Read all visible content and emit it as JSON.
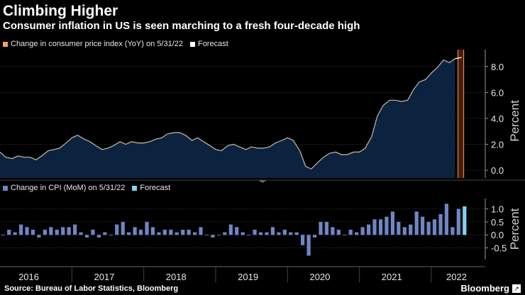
{
  "title": "Climbing Higher",
  "subtitle": "Consumer inflation in US is seen marching to a fresh four-decade high",
  "source": "Source: Bureau of Labor Statistics, Bloomberg",
  "brand": "Bloomberg",
  "brand_icon": "arrow-icon",
  "colors": {
    "bg": "#000000",
    "area_fill": "#0c2340",
    "area_line": "#c9b9a8",
    "highlight": "#f0a35e",
    "forecast_band": "#5a1e10",
    "bar": "#6f86c4",
    "bar_forecast": "#7fd3f0"
  },
  "chart_data": [
    {
      "type": "area",
      "legend": [
        {
          "label": "Change in consumer price index (YoY) on 5/31/22",
          "color": "#f0a35e"
        },
        {
          "label": "Forecast",
          "color": "#ffffff"
        }
      ],
      "ylabel": "Percent",
      "ylim": [
        -0.6,
        9.3
      ],
      "yticks": [
        0,
        2,
        4,
        6,
        8
      ],
      "ytick_labels": [
        "0.0",
        "2.0",
        "4.0",
        "6.0",
        "8.0"
      ],
      "x_start": 2016.0,
      "x_end": 2022.75,
      "series": [
        {
          "name": "CPI YoY",
          "x": [
            2016.0,
            2016.08,
            2016.17,
            2016.25,
            2016.33,
            2016.42,
            2016.5,
            2016.58,
            2016.67,
            2016.75,
            2016.83,
            2016.92,
            2017.0,
            2017.08,
            2017.17,
            2017.25,
            2017.33,
            2017.42,
            2017.5,
            2017.58,
            2017.67,
            2017.75,
            2017.83,
            2017.92,
            2018.0,
            2018.08,
            2018.17,
            2018.25,
            2018.33,
            2018.42,
            2018.5,
            2018.58,
            2018.67,
            2018.75,
            2018.83,
            2018.92,
            2019.0,
            2019.08,
            2019.17,
            2019.25,
            2019.33,
            2019.42,
            2019.5,
            2019.58,
            2019.67,
            2019.75,
            2019.83,
            2019.92,
            2020.0,
            2020.08,
            2020.17,
            2020.25,
            2020.33,
            2020.42,
            2020.5,
            2020.58,
            2020.67,
            2020.75,
            2020.83,
            2020.92,
            2021.0,
            2021.08,
            2021.17,
            2021.25,
            2021.33,
            2021.42,
            2021.5,
            2021.58,
            2021.67,
            2021.75,
            2021.83,
            2021.92,
            2022.0,
            2022.08,
            2022.17,
            2022.25,
            2022.33
          ],
          "values": [
            1.4,
            1.0,
            0.9,
            1.1,
            1.0,
            1.0,
            0.8,
            1.1,
            1.5,
            1.6,
            1.7,
            2.1,
            2.5,
            2.7,
            2.4,
            2.2,
            1.9,
            1.6,
            1.7,
            1.9,
            2.2,
            2.0,
            2.2,
            2.1,
            2.1,
            2.2,
            2.4,
            2.5,
            2.8,
            2.9,
            2.9,
            2.7,
            2.3,
            2.5,
            2.2,
            1.9,
            1.6,
            1.5,
            1.9,
            2.0,
            1.8,
            1.6,
            1.8,
            1.7,
            1.7,
            1.8,
            2.1,
            2.3,
            2.5,
            2.3,
            1.5,
            0.3,
            0.1,
            0.6,
            1.0,
            1.3,
            1.4,
            1.2,
            1.2,
            1.4,
            1.4,
            1.7,
            2.6,
            4.2,
            5.0,
            5.4,
            5.4,
            5.3,
            5.4,
            6.2,
            6.8,
            7.0,
            7.5,
            7.9,
            8.5,
            8.3,
            8.6
          ],
          "forecast_x": [
            2022.33,
            2022.42
          ],
          "forecast_values": [
            8.6,
            8.7
          ]
        }
      ],
      "forecast_band": [
        2022.37,
        2022.45
      ]
    },
    {
      "type": "bar",
      "legend": [
        {
          "label": "Change in CPI (MoM) on 5/31/22",
          "color": "#6f86c4"
        },
        {
          "label": "Forecast",
          "color": "#7fd3f0"
        }
      ],
      "ylabel": "Percent",
      "ylim": [
        -0.95,
        1.4
      ],
      "yticks": [
        -0.5,
        0,
        0.5,
        1.0
      ],
      "ytick_labels": [
        "-0.5",
        "0.0",
        "0.5",
        "1.0"
      ],
      "values": [
        0.0,
        0.2,
        0.1,
        0.4,
        0.3,
        0.2,
        -0.1,
        0.2,
        0.3,
        0.2,
        0.3,
        0.3,
        0.4,
        0.1,
        -0.1,
        0.2,
        -0.1,
        0.1,
        0.0,
        0.4,
        0.5,
        0.1,
        0.3,
        0.2,
        0.5,
        0.3,
        0.1,
        0.2,
        0.2,
        0.1,
        0.2,
        0.2,
        0.1,
        0.3,
        0.0,
        -0.1,
        0.0,
        0.1,
        0.4,
        0.3,
        0.1,
        0.0,
        0.2,
        0.1,
        0.1,
        0.3,
        0.1,
        0.2,
        0.1,
        0.1,
        -0.4,
        -0.8,
        -0.1,
        0.5,
        0.5,
        0.3,
        0.2,
        0.0,
        0.2,
        0.1,
        0.3,
        0.4,
        0.6,
        0.6,
        0.7,
        0.9,
        0.5,
        0.3,
        0.4,
        0.9,
        0.7,
        0.5,
        0.6,
        0.8,
        1.2,
        0.3,
        1.0
      ],
      "forecast_value": 1.1
    }
  ],
  "x_axis": {
    "labels": [
      "2016",
      "2017",
      "2018",
      "2019",
      "2020",
      "2021",
      "2022"
    ],
    "label_at": [
      2016.4,
      2017.45,
      2018.45,
      2019.45,
      2020.45,
      2021.45,
      2022.35
    ]
  }
}
